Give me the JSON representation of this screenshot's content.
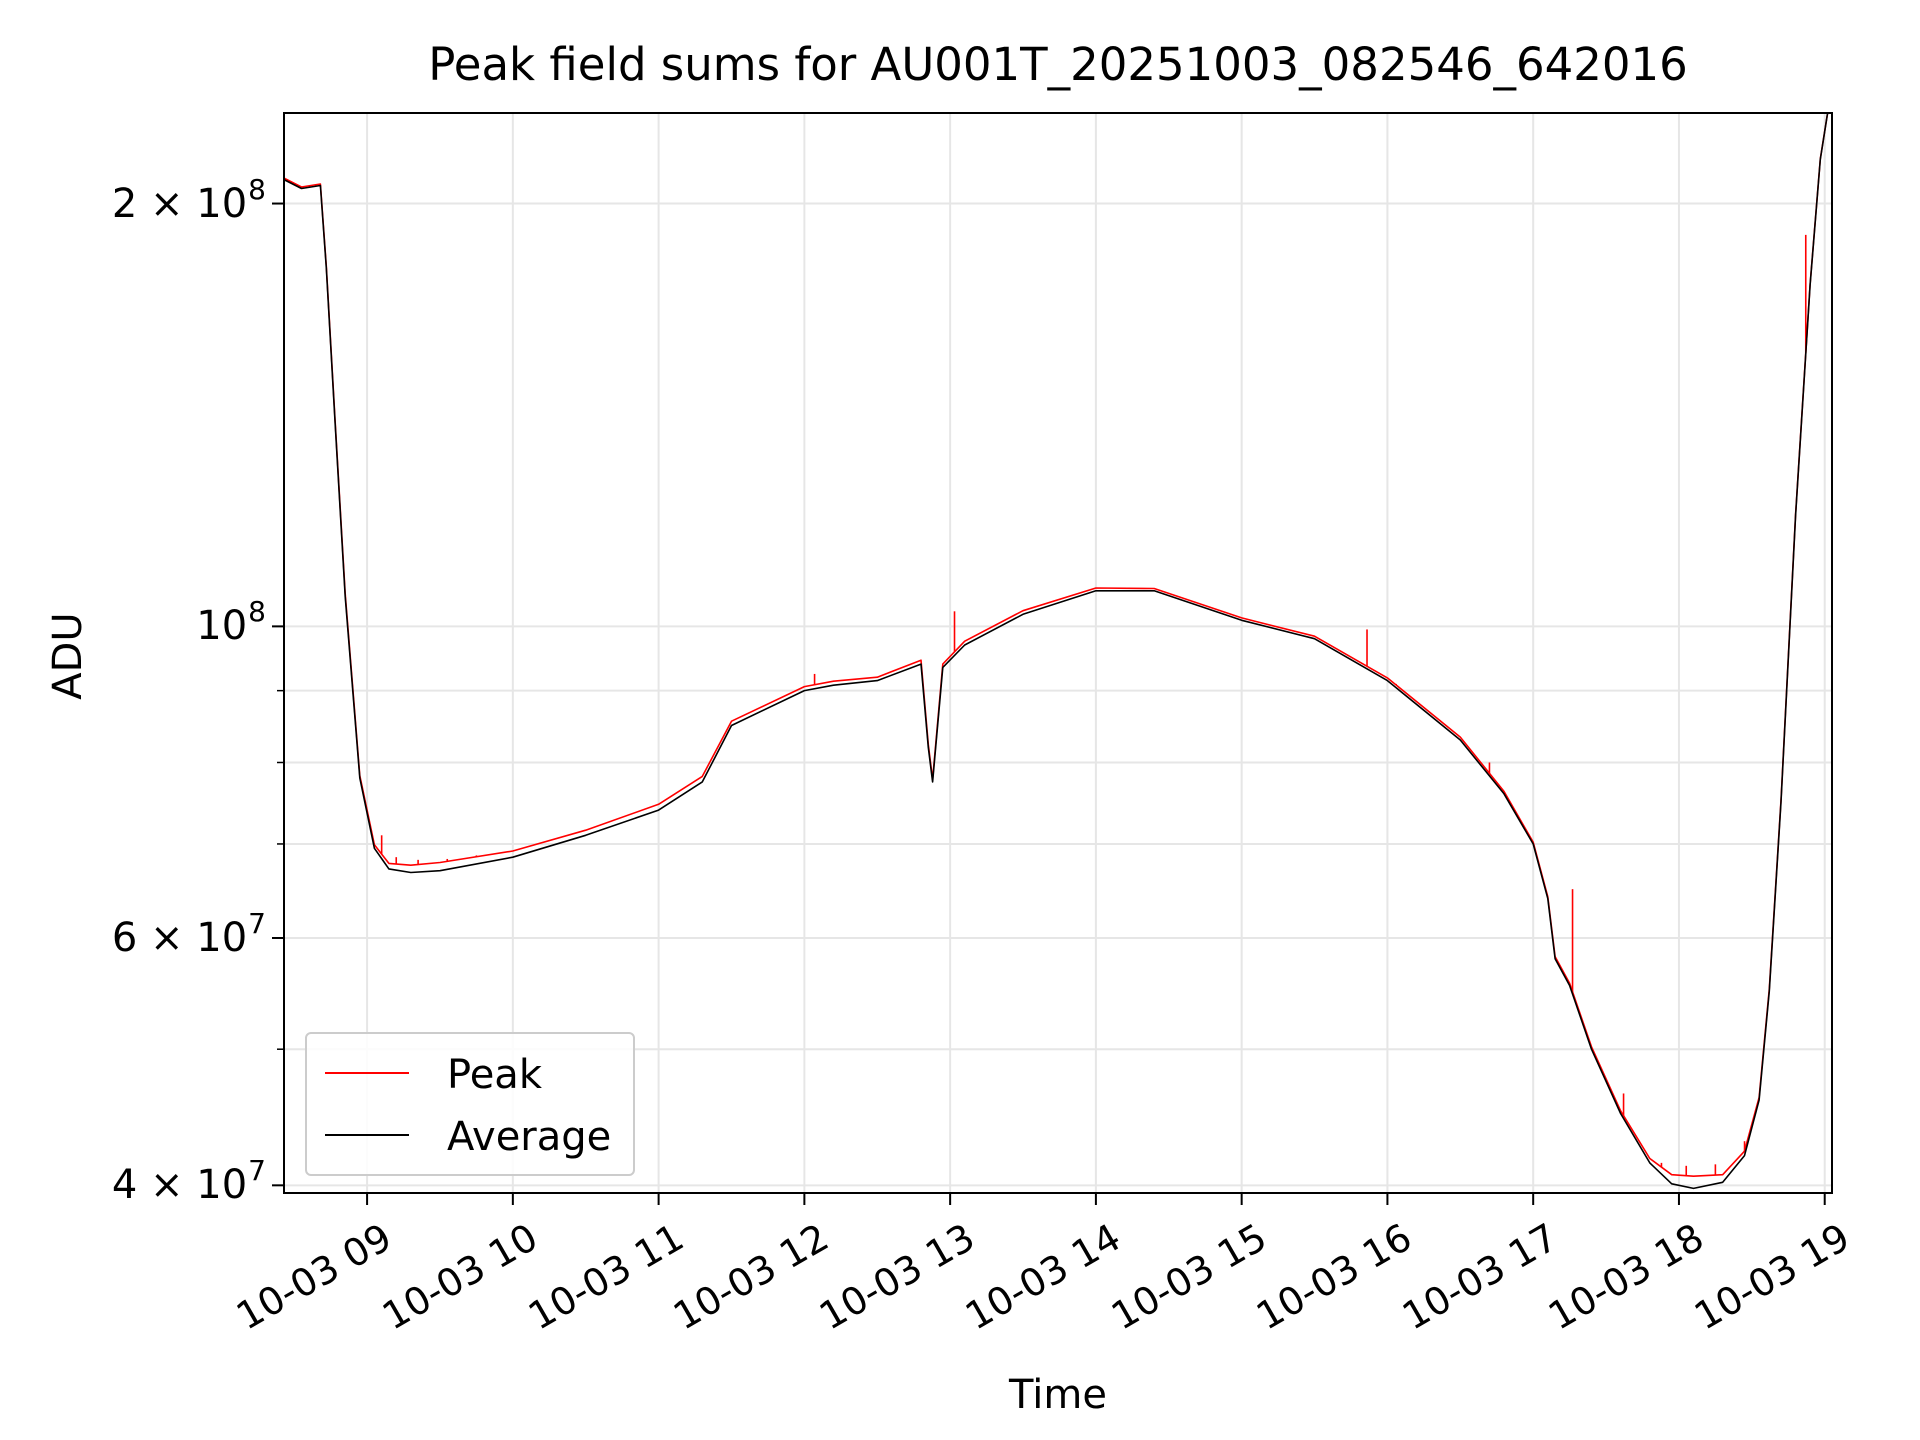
{
  "chart_data": {
    "type": "line",
    "title": "Peak field sums for AU001T_20251003_082546_642016",
    "xlabel": "Time",
    "ylabel": "ADU",
    "yscale": "log",
    "xlim": [
      8.43,
      19.05
    ],
    "ylim": [
      39500000,
      232000000
    ],
    "grid": true,
    "legend_location": "lower-left",
    "x_tick_labels": [
      {
        "value": 9,
        "label": "10-03 09"
      },
      {
        "value": 10,
        "label": "10-03 10"
      },
      {
        "value": 11,
        "label": "10-03 11"
      },
      {
        "value": 12,
        "label": "10-03 12"
      },
      {
        "value": 13,
        "label": "10-03 13"
      },
      {
        "value": 14,
        "label": "10-03 14"
      },
      {
        "value": 15,
        "label": "10-03 15"
      },
      {
        "value": 16,
        "label": "10-03 16"
      },
      {
        "value": 17,
        "label": "10-03 17"
      },
      {
        "value": 18,
        "label": "10-03 18"
      },
      {
        "value": 19,
        "label": "10-03 19"
      }
    ],
    "y_tick_labels": [
      {
        "value": 40000000,
        "base": "4 × 10",
        "exp": "7"
      },
      {
        "value": 60000000,
        "base": "6 × 10",
        "exp": "7"
      },
      {
        "value": 100000000,
        "base": "10",
        "exp": "8"
      },
      {
        "value": 200000000,
        "base": "2 × 10",
        "exp": "8"
      }
    ],
    "y_minor_ticks": [
      50000000,
      70000000,
      80000000,
      90000000
    ],
    "series": [
      {
        "name": "Average",
        "color": "#000000",
        "x": [
          8.43,
          8.55,
          8.68,
          8.72,
          8.78,
          8.85,
          8.95,
          9.05,
          9.15,
          9.3,
          9.5,
          10,
          10.5,
          11,
          11.3,
          11.5,
          12,
          12.2,
          12.5,
          12.8,
          12.85,
          12.88,
          12.95,
          13.1,
          13.5,
          14,
          14.4,
          15,
          15.5,
          16,
          16.5,
          16.8,
          17,
          17.1,
          17.15,
          17.25,
          17.4,
          17.6,
          17.8,
          17.95,
          18.1,
          18.3,
          18.45,
          18.55,
          18.62,
          18.7,
          18.8,
          18.9,
          18.97,
          19.02,
          19.05
        ],
        "values": [
          208000000,
          205000000,
          206000000,
          180000000,
          140000000,
          105000000,
          78000000,
          69500000,
          67200000,
          66800000,
          67000000,
          68500000,
          71000000,
          74000000,
          77500000,
          85000000,
          90000000,
          90800000,
          91500000,
          94000000,
          82000000,
          77500000,
          93500000,
          97000000,
          102000000,
          106000000,
          106000000,
          101000000,
          98000000,
          91500000,
          83000000,
          76000000,
          70000000,
          64000000,
          58000000,
          55500000,
          50000000,
          45000000,
          41500000,
          40100000,
          39800000,
          40200000,
          42000000,
          46000000,
          55000000,
          75000000,
          120000000,
          175000000,
          215000000,
          232000000,
          232000000
        ]
      },
      {
        "name": "Peak",
        "color": "#ff0000",
        "x": [
          8.43,
          8.55,
          8.68,
          8.72,
          8.78,
          8.85,
          8.95,
          9.05,
          9.15,
          9.3,
          9.5,
          10,
          10.5,
          11,
          11.3,
          11.5,
          12,
          12.2,
          12.5,
          12.8,
          12.85,
          12.88,
          12.95,
          13.1,
          13.5,
          14,
          14.4,
          15,
          15.5,
          16,
          16.5,
          16.8,
          17,
          17.1,
          17.15,
          17.25,
          17.4,
          17.6,
          17.8,
          17.95,
          18.1,
          18.3,
          18.45,
          18.55,
          18.62,
          18.7,
          18.8,
          18.9,
          18.97,
          19.02,
          19.05
        ],
        "values": [
          208500000,
          205500000,
          206500000,
          180500000,
          140500000,
          105500000,
          78300000,
          69900000,
          67800000,
          67600000,
          67900000,
          69200000,
          71600000,
          74700000,
          78200000,
          85600000,
          90600000,
          91400000,
          92000000,
          94600000,
          82400000,
          77800000,
          94000000,
          97600000,
          102600000,
          106500000,
          106400000,
          101400000,
          98400000,
          91900000,
          83400000,
          76300000,
          70200000,
          64200000,
          58200000,
          55700000,
          50200000,
          45200000,
          41800000,
          40700000,
          40600000,
          40700000,
          42300000,
          46200000,
          55200000,
          75200000,
          120200000,
          175200000,
          215200000,
          232000000,
          232000000
        ],
        "spikes": [
          {
            "x": 9.1,
            "value": 71000000
          },
          {
            "x": 9.2,
            "value": 68500000
          },
          {
            "x": 9.35,
            "value": 68200000
          },
          {
            "x": 9.55,
            "value": 68300000
          },
          {
            "x": 9.75,
            "value": 68700000
          },
          {
            "x": 12.07,
            "value": 92500000
          },
          {
            "x": 13.03,
            "value": 102500000
          },
          {
            "x": 15.86,
            "value": 99500000
          },
          {
            "x": 16.06,
            "value": 91000000
          },
          {
            "x": 16.7,
            "value": 80000000
          },
          {
            "x": 17.27,
            "value": 65000000
          },
          {
            "x": 17.62,
            "value": 46500000
          },
          {
            "x": 17.88,
            "value": 41500000
          },
          {
            "x": 18.05,
            "value": 41300000
          },
          {
            "x": 18.25,
            "value": 41400000
          },
          {
            "x": 18.45,
            "value": 43000000
          },
          {
            "x": 18.87,
            "value": 190000000
          }
        ]
      }
    ]
  }
}
